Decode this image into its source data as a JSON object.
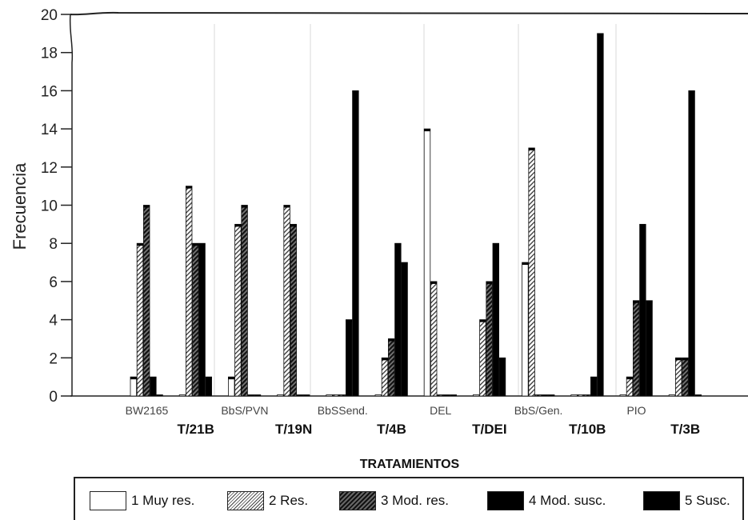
{
  "chart_data": {
    "type": "bar",
    "ylabel": "Frecuencia",
    "xlabel": "TRATAMIENTOS",
    "ylim": [
      0,
      20
    ],
    "yticks": [
      0,
      2,
      4,
      6,
      8,
      10,
      12,
      14,
      16,
      18,
      20
    ],
    "categories": [
      "BW2165",
      "T/21B",
      "BbS/PVN",
      "T/19N",
      "BbSSend.",
      "T/4B",
      "DEL",
      "T/DEI",
      "BbS/Gen.",
      "T/10B",
      "PIO",
      "T/3B"
    ],
    "series": [
      {
        "name": "1 Muy res.",
        "values": [
          1,
          0,
          1,
          0,
          0,
          0,
          14,
          0,
          7,
          0,
          0,
          0
        ]
      },
      {
        "name": "2 Res.",
        "values": [
          8,
          11,
          9,
          10,
          0,
          2,
          6,
          4,
          13,
          0,
          1,
          2
        ]
      },
      {
        "name": "3 Mod. res.",
        "values": [
          10,
          8,
          10,
          9,
          0,
          3,
          0,
          6,
          0,
          0,
          5,
          2
        ]
      },
      {
        "name": "4 Mod. susc.",
        "values": [
          1,
          8,
          0,
          0,
          4,
          8,
          0,
          8,
          0,
          1,
          9,
          16
        ]
      },
      {
        "name": "5 Susc.",
        "values": [
          0,
          1,
          0,
          0,
          16,
          7,
          0,
          2,
          0,
          19,
          5,
          0
        ]
      }
    ],
    "grid": false,
    "legend": "bottom"
  }
}
